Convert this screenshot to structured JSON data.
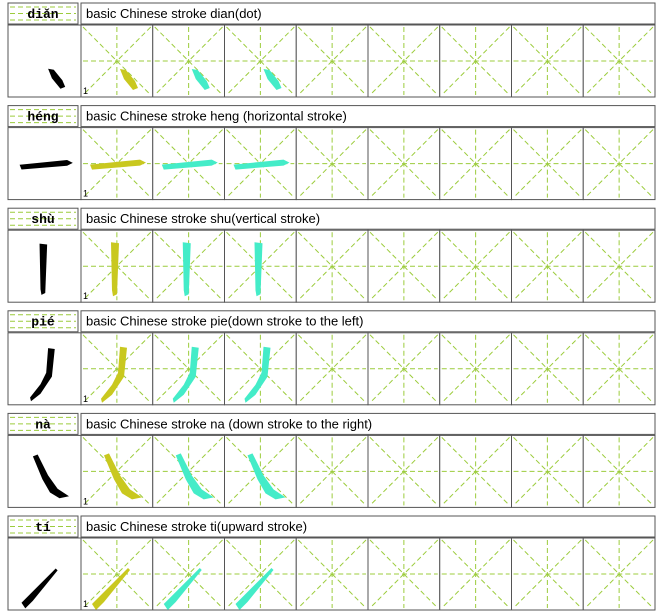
{
  "rows": [
    {
      "pinyin": "diǎn",
      "description": "basic Chinese stroke dian(dot)",
      "start_number": "1"
    },
    {
      "pinyin": "héng",
      "description": "basic Chinese stroke heng (horizontal stroke)",
      "start_number": "1"
    },
    {
      "pinyin": "shù",
      "description": "basic Chinese stroke shu(vertical stroke)",
      "start_number": "1"
    },
    {
      "pinyin": "pié",
      "description": "basic Chinese stroke pie(down stroke to the left)",
      "start_number": "1"
    },
    {
      "pinyin": "nà",
      "description": "basic Chinese stroke na (down stroke to the right)",
      "start_number": "1"
    },
    {
      "pinyin": "tí",
      "description": "basic Chinese stroke ti(upward stroke)",
      "start_number": "1"
    }
  ]
}
